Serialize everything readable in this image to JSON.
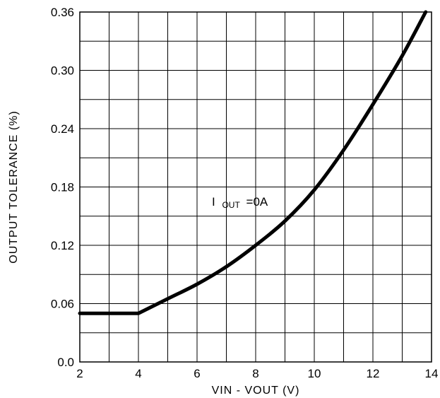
{
  "chart_data": {
    "type": "line",
    "xlabel": "VIN - VOUT (V)",
    "ylabel": "OUTPUT TOLERANCE (%)",
    "xlim": [
      2,
      14
    ],
    "ylim": [
      0,
      0.36
    ],
    "x_ticks": [
      "2",
      "4",
      "6",
      "8",
      "10",
      "12",
      "14"
    ],
    "y_ticks": [
      "0.0",
      "0.06",
      "0.12",
      "0.18",
      "0.24",
      "0.30",
      "0.36"
    ],
    "grid": true,
    "annotation": {
      "main": "I",
      "sub": "OUT",
      "rest": "=0A"
    },
    "series": [
      {
        "x": [
          2,
          4,
          5,
          6,
          7,
          8,
          9,
          10,
          11,
          12,
          13,
          13.8
        ],
        "y": [
          0.05,
          0.05,
          0.065,
          0.08,
          0.098,
          0.12,
          0.145,
          0.177,
          0.218,
          0.265,
          0.315,
          0.36
        ]
      }
    ]
  }
}
